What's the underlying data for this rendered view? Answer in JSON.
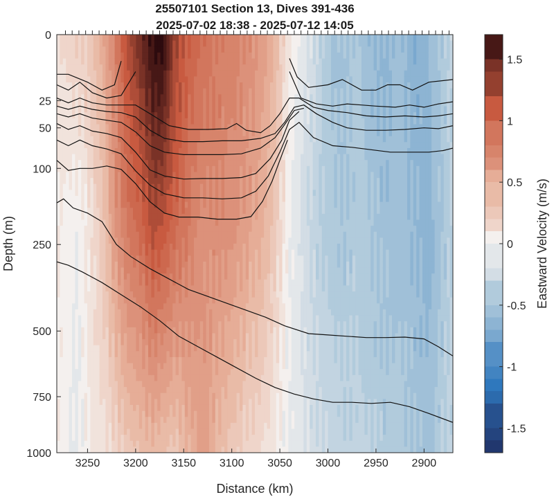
{
  "chart_data": {
    "type": "heatmap",
    "title": "25507101 Section 13, Dives 391-436",
    "subtitle": "2025-07-02 18:38 - 2025-07-12 14:05",
    "xlabel": "Distance (km)",
    "ylabel": "Depth (m)",
    "colorbar_label": "Eastward Velocity (m/s)",
    "xlim": [
      3282,
      2870
    ],
    "x_reversed": true,
    "ylim": [
      0,
      1000
    ],
    "y_reversed": true,
    "x_ticks": [
      3250,
      3200,
      3150,
      3100,
      3050,
      3000,
      2950,
      2900
    ],
    "x_tick_labels": [
      "3250",
      "3200",
      "3150",
      "3100",
      "3050",
      "3000",
      "2950",
      "2900"
    ],
    "y_ticks": [
      0,
      25,
      50,
      100,
      250,
      500,
      750,
      1000
    ],
    "y_tick_labels": [
      "0",
      "25",
      "50",
      "100",
      "250",
      "500",
      "750",
      "1000"
    ],
    "y_scale_samples": [
      [
        0,
        0
      ],
      [
        25,
        0.158
      ],
      [
        50,
        0.223
      ],
      [
        100,
        0.32
      ],
      [
        250,
        0.502
      ],
      [
        500,
        0.709
      ],
      [
        750,
        0.866
      ],
      [
        1000,
        1.0
      ]
    ],
    "colorbar": {
      "range": [
        -1.7,
        1.7
      ],
      "ticks": [
        1.5,
        1,
        0.5,
        0,
        -0.5,
        -1,
        -1.5
      ],
      "tick_labels": [
        "1.5",
        "1",
        "0.5",
        "0",
        "-0.5",
        "-1",
        "-1.5"
      ],
      "colormap": "red-white-blue diverging",
      "colors": {
        "neg_dark": "#1e2a5e",
        "neg_mid": "#2f78bd",
        "neg_light": "#a9c6da",
        "zero": "#f4f0ee",
        "pos_light": "#e8b49e",
        "pos_mid": "#c85a40",
        "pos_dark": "#2d0b0e"
      }
    },
    "dive_marks_x": [
      3273,
      3266,
      3259,
      3252,
      3245,
      3238,
      3231,
      3224,
      3217,
      3210,
      3203,
      3196,
      3189,
      3182,
      3175,
      3168,
      3161,
      3154,
      3147,
      3140,
      3133,
      3126,
      3119,
      3112,
      3105,
      3098,
      3091,
      3084,
      3077,
      3070,
      3063,
      3056,
      3049,
      3042,
      3035,
      3028,
      3021,
      3014,
      3007,
      3000,
      2993,
      2986,
      2979,
      2972,
      2965,
      2958,
      2951,
      2944,
      2937,
      2930,
      2923,
      2916,
      2909,
      2902,
      2895,
      2888,
      2881,
      2874
    ],
    "field_columns": [
      {
        "x": 3278,
        "surface": 0.15,
        "mid": 0.05,
        "deep": 0.02
      },
      {
        "x": 3262,
        "surface": 0.25,
        "mid": -0.05,
        "deep": -0.1
      },
      {
        "x": 3248,
        "surface": 0.3,
        "mid": 0.1,
        "deep": 0.05
      },
      {
        "x": 3232,
        "surface": 0.55,
        "mid": 0.35,
        "deep": 0.12
      },
      {
        "x": 3220,
        "surface": 0.85,
        "mid": 0.7,
        "deep": 0.2
      },
      {
        "x": 3208,
        "surface": 1.2,
        "mid": 0.9,
        "deep": 0.3
      },
      {
        "x": 3195,
        "surface": 1.45,
        "mid": 1.0,
        "deep": 0.35
      },
      {
        "x": 3182,
        "surface": 1.7,
        "mid": 1.2,
        "deep": 0.4
      },
      {
        "x": 3172,
        "surface": 1.75,
        "mid": 1.15,
        "deep": 0.35
      },
      {
        "x": 3160,
        "surface": 1.3,
        "mid": 1.0,
        "deep": 0.3
      },
      {
        "x": 3145,
        "surface": 1.05,
        "mid": 0.85,
        "deep": 0.45
      },
      {
        "x": 3130,
        "surface": 0.95,
        "mid": 0.7,
        "deep": 0.6
      },
      {
        "x": 3115,
        "surface": 0.85,
        "mid": 0.75,
        "deep": 0.4
      },
      {
        "x": 3100,
        "surface": 0.8,
        "mid": 0.7,
        "deep": 0.3
      },
      {
        "x": 3085,
        "surface": 0.75,
        "mid": 0.6,
        "deep": 0.2
      },
      {
        "x": 3070,
        "surface": 0.65,
        "mid": 0.5,
        "deep": 0.15
      },
      {
        "x": 3055,
        "surface": 0.45,
        "mid": 0.3,
        "deep": 0.05
      },
      {
        "x": 3042,
        "surface": 0.1,
        "mid": 0.0,
        "deep": -0.05
      },
      {
        "x": 3030,
        "surface": -0.05,
        "mid": -0.15,
        "deep": -0.1
      },
      {
        "x": 3015,
        "surface": -0.2,
        "mid": -0.3,
        "deep": -0.2
      },
      {
        "x": 3000,
        "surface": -0.45,
        "mid": -0.4,
        "deep": -0.25
      },
      {
        "x": 2985,
        "surface": -0.5,
        "mid": -0.45,
        "deep": -0.3
      },
      {
        "x": 2970,
        "surface": -0.4,
        "mid": -0.4,
        "deep": -0.3
      },
      {
        "x": 2955,
        "surface": -0.55,
        "mid": -0.45,
        "deep": -0.35
      },
      {
        "x": 2940,
        "surface": -0.6,
        "mid": -0.5,
        "deep": -0.4
      },
      {
        "x": 2925,
        "surface": -0.5,
        "mid": -0.5,
        "deep": -0.4
      },
      {
        "x": 2910,
        "surface": -0.65,
        "mid": -0.55,
        "deep": -0.45
      },
      {
        "x": 2895,
        "surface": -0.55,
        "mid": -0.6,
        "deep": -0.5
      },
      {
        "x": 2880,
        "surface": -0.4,
        "mid": -0.45,
        "deep": -0.35
      },
      {
        "x": 2872,
        "surface": -0.3,
        "mid": -0.35,
        "deep": -0.3
      }
    ],
    "contours": [
      {
        "left": [
          [
            3282,
            15
          ],
          [
            3270,
            15
          ],
          [
            3250,
            18
          ],
          [
            3235,
            21
          ],
          [
            3222,
            19
          ],
          [
            3215,
            10
          ]
        ],
        "right": [
          [
            3040,
            9
          ],
          [
            3032,
            16
          ],
          [
            3020,
            20
          ],
          [
            3000,
            19
          ],
          [
            2985,
            17
          ],
          [
            2965,
            21
          ],
          [
            2950,
            21
          ],
          [
            2938,
            19
          ],
          [
            2925,
            19
          ],
          [
            2912,
            21
          ],
          [
            2895,
            18
          ],
          [
            2870,
            17
          ]
        ]
      },
      {
        "left": [
          [
            3282,
            19
          ],
          [
            3270,
            21
          ],
          [
            3258,
            18
          ],
          [
            3245,
            22
          ],
          [
            3230,
            24
          ],
          [
            3215,
            23
          ],
          [
            3200,
            14
          ]
        ],
        "right": [
          [
            3040,
            14
          ],
          [
            3028,
            24
          ],
          [
            3012,
            28
          ],
          [
            2995,
            30
          ],
          [
            2980,
            28
          ],
          [
            2965,
            29
          ],
          [
            2950,
            30
          ],
          [
            2930,
            31
          ],
          [
            2915,
            29
          ],
          [
            2900,
            31
          ],
          [
            2885,
            28
          ],
          [
            2870,
            26
          ]
        ]
      },
      {
        "left": [
          [
            3282,
            24
          ],
          [
            3270,
            27
          ],
          [
            3258,
            24
          ],
          [
            3245,
            27
          ],
          [
            3230,
            29
          ],
          [
            3215,
            29
          ],
          [
            3200,
            29
          ],
          [
            3185,
            37
          ],
          [
            3165,
            48
          ],
          [
            3145,
            52
          ],
          [
            3125,
            52
          ],
          [
            3105,
            51
          ],
          [
            3095,
            46
          ],
          [
            3085,
            53
          ],
          [
            3070,
            56
          ],
          [
            3060,
            48
          ],
          [
            3050,
            37
          ],
          [
            3040,
            24
          ],
          [
            3030,
            24
          ],
          [
            3015,
            31
          ],
          [
            3000,
            34
          ],
          [
            2980,
            36
          ],
          [
            2960,
            39
          ],
          [
            2940,
            40
          ],
          [
            2920,
            39
          ],
          [
            2900,
            40
          ],
          [
            2885,
            39
          ],
          [
            2870,
            37
          ]
        ]
      },
      {
        "left": [
          [
            3282,
            30
          ],
          [
            3270,
            33
          ],
          [
            3258,
            30
          ],
          [
            3245,
            33
          ],
          [
            3230,
            35
          ],
          [
            3215,
            36
          ],
          [
            3200,
            40
          ],
          [
            3185,
            53
          ],
          [
            3170,
            63
          ],
          [
            3150,
            67
          ],
          [
            3130,
            67
          ],
          [
            3110,
            66
          ],
          [
            3090,
            66
          ],
          [
            3070,
            63
          ],
          [
            3055,
            57
          ],
          [
            3045,
            45
          ],
          [
            3035,
            31
          ],
          [
            3025,
            29
          ],
          [
            3012,
            37
          ],
          [
            2995,
            45
          ],
          [
            2980,
            50
          ],
          [
            2960,
            53
          ],
          [
            2940,
            53
          ],
          [
            2920,
            52
          ],
          [
            2900,
            50
          ],
          [
            2885,
            51
          ],
          [
            2870,
            48
          ]
        ]
      },
      {
        "left": [
          [
            3282,
            37
          ],
          [
            3270,
            40
          ],
          [
            3258,
            37
          ],
          [
            3245,
            41
          ],
          [
            3230,
            43
          ],
          [
            3215,
            45
          ],
          [
            3200,
            55
          ],
          [
            3185,
            72
          ],
          [
            3170,
            80
          ],
          [
            3150,
            83
          ],
          [
            3130,
            83
          ],
          [
            3110,
            83
          ],
          [
            3090,
            82
          ],
          [
            3070,
            75
          ],
          [
            3055,
            62
          ],
          [
            3045,
            47
          ],
          [
            3035,
            34
          ],
          [
            3025,
            32
          ]
        ]
      },
      {
        "left": [
          [
            3282,
            46
          ],
          [
            3270,
            52
          ],
          [
            3258,
            48
          ],
          [
            3245,
            54
          ],
          [
            3230,
            57
          ],
          [
            3215,
            62
          ],
          [
            3200,
            80
          ],
          [
            3185,
            103
          ],
          [
            3170,
            115
          ],
          [
            3150,
            121
          ],
          [
            3130,
            120
          ],
          [
            3110,
            120
          ],
          [
            3090,
            118
          ],
          [
            3075,
            110
          ],
          [
            3060,
            88
          ],
          [
            3048,
            65
          ],
          [
            3040,
            43
          ],
          [
            3030,
            35
          ]
        ]
      },
      {
        "left": [
          [
            3282,
            65
          ],
          [
            3270,
            72
          ],
          [
            3258,
            65
          ],
          [
            3245,
            72
          ],
          [
            3230,
            76
          ],
          [
            3215,
            82
          ],
          [
            3200,
            105
          ],
          [
            3185,
            133
          ],
          [
            3170,
            150
          ],
          [
            3150,
            158
          ],
          [
            3130,
            158
          ],
          [
            3110,
            160
          ],
          [
            3090,
            158
          ],
          [
            3075,
            145
          ],
          [
            3062,
            115
          ],
          [
            3050,
            80
          ],
          [
            3040,
            52
          ],
          [
            3030,
            45
          ],
          [
            3015,
            62
          ],
          [
            2995,
            72
          ],
          [
            2975,
            74
          ],
          [
            2955,
            77
          ],
          [
            2935,
            80
          ],
          [
            2915,
            80
          ],
          [
            2895,
            80
          ],
          [
            2880,
            78
          ],
          [
            2870,
            75
          ]
        ]
      },
      {
        "left": [
          [
            3282,
            90
          ],
          [
            3270,
            104
          ],
          [
            3258,
            100
          ],
          [
            3245,
            100
          ],
          [
            3230,
            97
          ],
          [
            3215,
            102
          ],
          [
            3200,
            130
          ],
          [
            3185,
            166
          ],
          [
            3170,
            188
          ],
          [
            3155,
            196
          ],
          [
            3135,
            196
          ],
          [
            3115,
            200
          ],
          [
            3095,
            200
          ],
          [
            3080,
            195
          ],
          [
            3068,
            165
          ],
          [
            3058,
            125
          ],
          [
            3050,
            90
          ],
          [
            3042,
            65
          ]
        ]
      },
      {
        "left": [
          [
            3282,
            168
          ],
          [
            3275,
            160
          ],
          [
            3265,
            178
          ],
          [
            3250,
            188
          ],
          [
            3235,
            205
          ],
          [
            3220,
            250
          ],
          [
            3205,
            285
          ],
          [
            3185,
            320
          ],
          [
            3165,
            350
          ],
          [
            3145,
            380
          ],
          [
            3125,
            400
          ],
          [
            3105,
            420
          ],
          [
            3085,
            440
          ],
          [
            3065,
            460
          ],
          [
            3045,
            485
          ],
          [
            3020,
            510
          ],
          [
            3000,
            515
          ],
          [
            2980,
            520
          ],
          [
            2960,
            525
          ],
          [
            2940,
            525
          ],
          [
            2920,
            523
          ],
          [
            2900,
            530
          ],
          [
            2885,
            560
          ],
          [
            2870,
            595
          ]
        ]
      },
      {
        "left": [
          [
            3282,
            300
          ],
          [
            3270,
            310
          ],
          [
            3255,
            330
          ],
          [
            3235,
            360
          ],
          [
            3215,
            395
          ],
          [
            3195,
            430
          ],
          [
            3175,
            470
          ],
          [
            3155,
            520
          ],
          [
            3135,
            560
          ],
          [
            3115,
            600
          ],
          [
            3095,
            640
          ],
          [
            3075,
            680
          ],
          [
            3055,
            715
          ],
          [
            3035,
            740
          ],
          [
            3015,
            760
          ],
          [
            2995,
            775
          ],
          [
            2975,
            775
          ],
          [
            2955,
            780
          ],
          [
            2935,
            775
          ],
          [
            2915,
            795
          ],
          [
            2895,
            825
          ],
          [
            2870,
            865
          ]
        ]
      }
    ]
  }
}
